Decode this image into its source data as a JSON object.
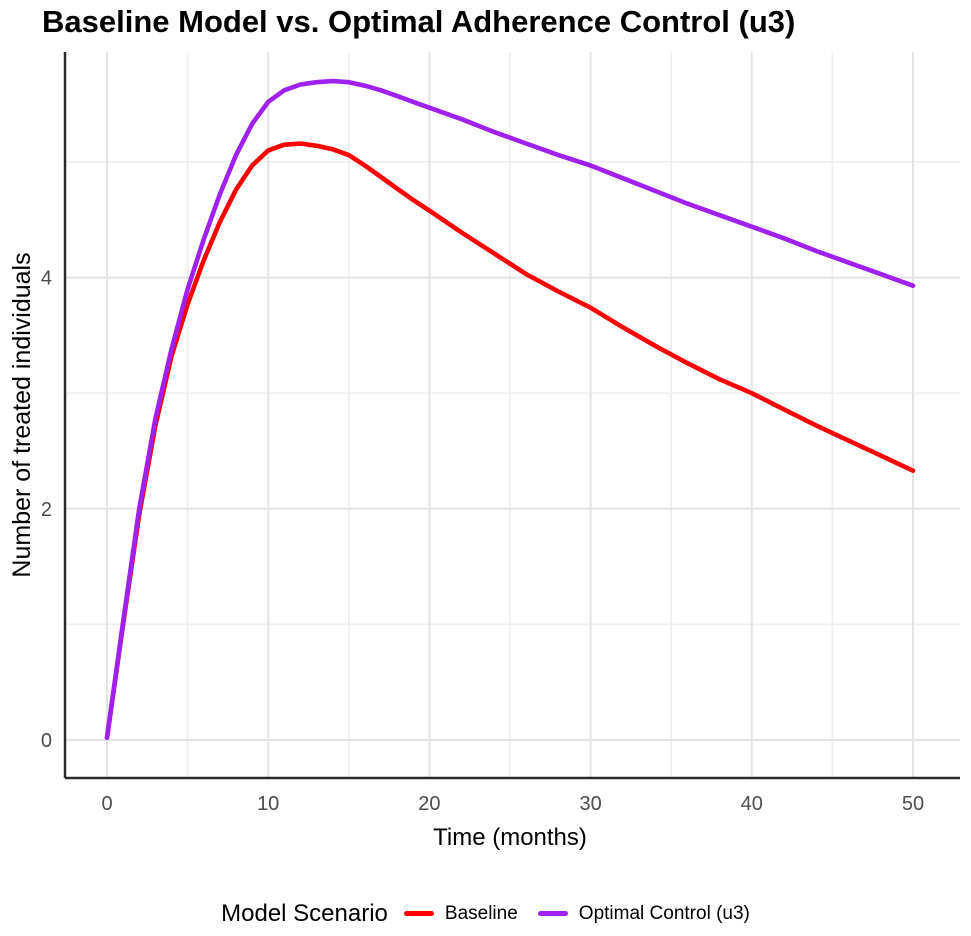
{
  "title": "Baseline Model vs. Optimal Adherence Control (u3)",
  "chart_data": {
    "type": "line",
    "title": "Baseline Model vs. Optimal Adherence Control (u3)",
    "xlabel": "Time (months)",
    "ylabel": "Number of treated individuals",
    "legend_title": "Model Scenario",
    "legend_position": "bottom",
    "grid": "on",
    "xlim": [
      -2.5,
      53
    ],
    "ylim": [
      -0.33,
      5.95
    ],
    "x_ticks": [
      0,
      10,
      20,
      30,
      40,
      50
    ],
    "x_minor_ticks": [
      5,
      15,
      25,
      35,
      45
    ],
    "y_ticks": [
      0,
      2,
      4
    ],
    "y_minor_ticks": [
      1,
      3,
      5
    ],
    "x": [
      0,
      1,
      2,
      3,
      4,
      5,
      6,
      7,
      8,
      9,
      10,
      11,
      12,
      13,
      14,
      15,
      16,
      17,
      18,
      19,
      20,
      22,
      24,
      26,
      28,
      30,
      32,
      34,
      36,
      38,
      40,
      42,
      44,
      46,
      48,
      50
    ],
    "series": [
      {
        "name": "Baseline",
        "color": "#FF0000",
        "values": [
          0.02,
          1.0,
          1.95,
          2.72,
          3.32,
          3.77,
          4.15,
          4.48,
          4.76,
          4.97,
          5.1,
          5.15,
          5.16,
          5.14,
          5.11,
          5.06,
          4.97,
          4.87,
          4.77,
          4.67,
          4.58,
          4.39,
          4.21,
          4.03,
          3.88,
          3.74,
          3.57,
          3.41,
          3.26,
          3.12,
          3.0,
          2.86,
          2.72,
          2.59,
          2.46,
          2.33
        ]
      },
      {
        "name": "Optimal Control (u3)",
        "color": "#A020F0",
        "values": [
          0.02,
          1.02,
          2.0,
          2.78,
          3.38,
          3.9,
          4.33,
          4.72,
          5.06,
          5.33,
          5.52,
          5.62,
          5.67,
          5.69,
          5.7,
          5.69,
          5.66,
          5.62,
          5.57,
          5.52,
          5.47,
          5.37,
          5.26,
          5.16,
          5.06,
          4.97,
          4.86,
          4.75,
          4.64,
          4.54,
          4.44,
          4.34,
          4.23,
          4.13,
          4.03,
          3.93
        ]
      }
    ]
  },
  "colors": {
    "baseline": "#FF0000",
    "optimal_control": "#A020F0",
    "grid_major": "#e4e4e4",
    "grid_minor": "#efefef",
    "axis_line": "#2b2b2b",
    "tick_label": "#4d4d4d",
    "background": "#ffffff"
  }
}
